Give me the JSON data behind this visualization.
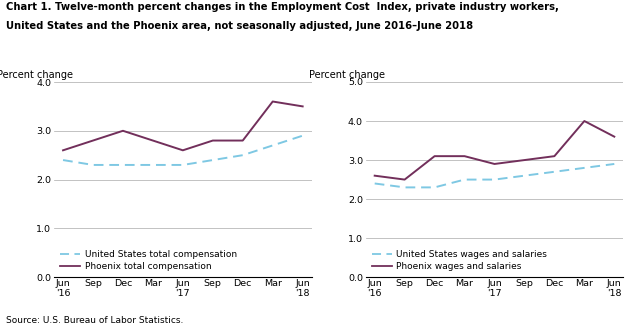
{
  "title_line1": "Chart 1. Twelve-month percent changes in the Employment Cost  Index, private industry workers,",
  "title_line2": "United States and the Phoenix area, not seasonally adjusted, June 2016–June 2018",
  "source": "Source: U.S. Bureau of Labor Statistics.",
  "left_ylabel": "Percent change",
  "left_ylim": [
    0.0,
    4.0
  ],
  "left_yticks": [
    0.0,
    1.0,
    2.0,
    3.0,
    4.0
  ],
  "left_us_total": [
    2.4,
    2.3,
    2.3,
    2.3,
    2.3,
    2.4,
    2.5,
    2.7,
    2.9
  ],
  "left_phx_total": [
    2.6,
    2.8,
    3.0,
    2.8,
    2.6,
    2.8,
    2.8,
    3.6,
    3.5
  ],
  "right_ylabel": "Percent change",
  "right_ylim": [
    0.0,
    5.0
  ],
  "right_yticks": [
    0.0,
    1.0,
    2.0,
    3.0,
    4.0,
    5.0
  ],
  "right_us_wages": [
    2.4,
    2.3,
    2.3,
    2.5,
    2.5,
    2.6,
    2.7,
    2.8,
    2.9
  ],
  "right_phx_wages": [
    2.6,
    2.5,
    3.1,
    3.1,
    2.9,
    3.0,
    3.1,
    4.0,
    3.6
  ],
  "us_color": "#7ec8e3",
  "phx_color": "#722F5B",
  "line_width": 1.4,
  "left_legend_us": "United States total compensation",
  "left_legend_phx": "Phoenix total compensation",
  "right_legend_us": "United States wages and salaries",
  "right_legend_phx": "Phoenix wages and salaries",
  "tick_labels_top": [
    "Jun",
    "Sep",
    "Dec",
    "Mar",
    "Jun",
    "Sep",
    "Dec",
    "Mar",
    "Jun"
  ],
  "tick_labels_bottom": [
    "'16",
    "",
    "",
    "",
    "'17",
    "",
    "",
    "",
    "'18"
  ],
  "title_fontsize": 7.2,
  "label_fontsize": 7.0,
  "tick_fontsize": 6.8,
  "legend_fontsize": 6.5,
  "source_fontsize": 6.5
}
